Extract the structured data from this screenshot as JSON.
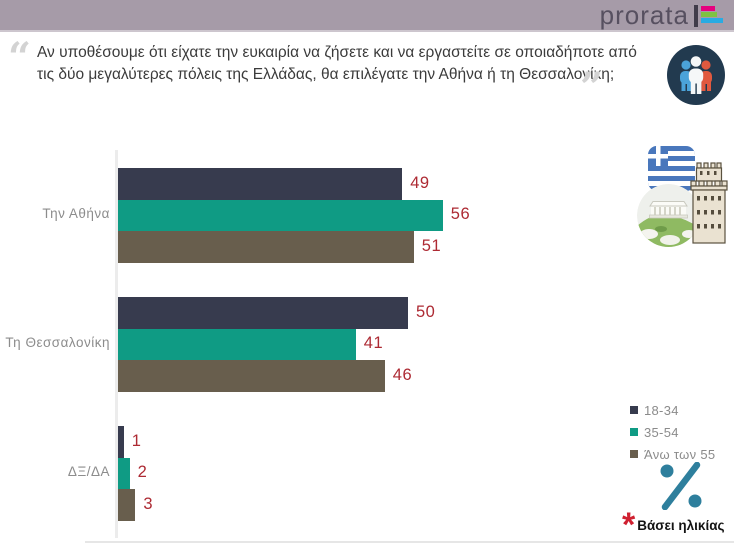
{
  "header": {
    "logo_text": "prorata",
    "band_color": "#a69ba8",
    "logo_mark_colors": {
      "pink": "#e6007e",
      "green": "#7fc241",
      "blue": "#29abe2"
    }
  },
  "question": {
    "open_quote": "“",
    "close_quote": "”",
    "text": "Αν υποθέσουμε ότι είχατε την ευκαιρία να ζήσετε και να εργαστείτε σε οποιαδήποτε από τις δύο μεγαλύτερες πόλεις της Ελλάδας, θα επιλέγατε την Αθήνα ή τη Θεσσαλονίκη;"
  },
  "chart_data": {
    "type": "bar",
    "orientation": "horizontal",
    "categories": [
      "Την Αθήνα",
      "Τη Θεσσαλονίκη",
      "ΔΞ/ΔΑ"
    ],
    "series": [
      {
        "name": "18-34",
        "color": "#373b4e",
        "values": [
          49,
          50,
          1
        ]
      },
      {
        "name": "35-54",
        "color": "#0f9b84",
        "values": [
          56,
          41,
          2
        ]
      },
      {
        "name": "Άνω των 55",
        "color": "#685e4d",
        "values": [
          51,
          46,
          3
        ]
      }
    ],
    "unit": "%",
    "xlim": [
      0,
      100
    ],
    "grid": false,
    "legend_position": "right-bottom",
    "value_label_color": "#ad2a33",
    "axis_color": "#ececec",
    "unit_symbol_color": "#2e7f9d"
  },
  "footnote": {
    "marker": "*",
    "marker_color": "#cf2030",
    "text": "Βάσει ηλικίας"
  },
  "icons": {
    "people_group": "people-group-icon",
    "greek_flag": "greek-flag-icon",
    "white_tower": "white-tower-icon",
    "acropolis_hill": "acropolis-icon",
    "percent_symbol": "percent-icon"
  }
}
